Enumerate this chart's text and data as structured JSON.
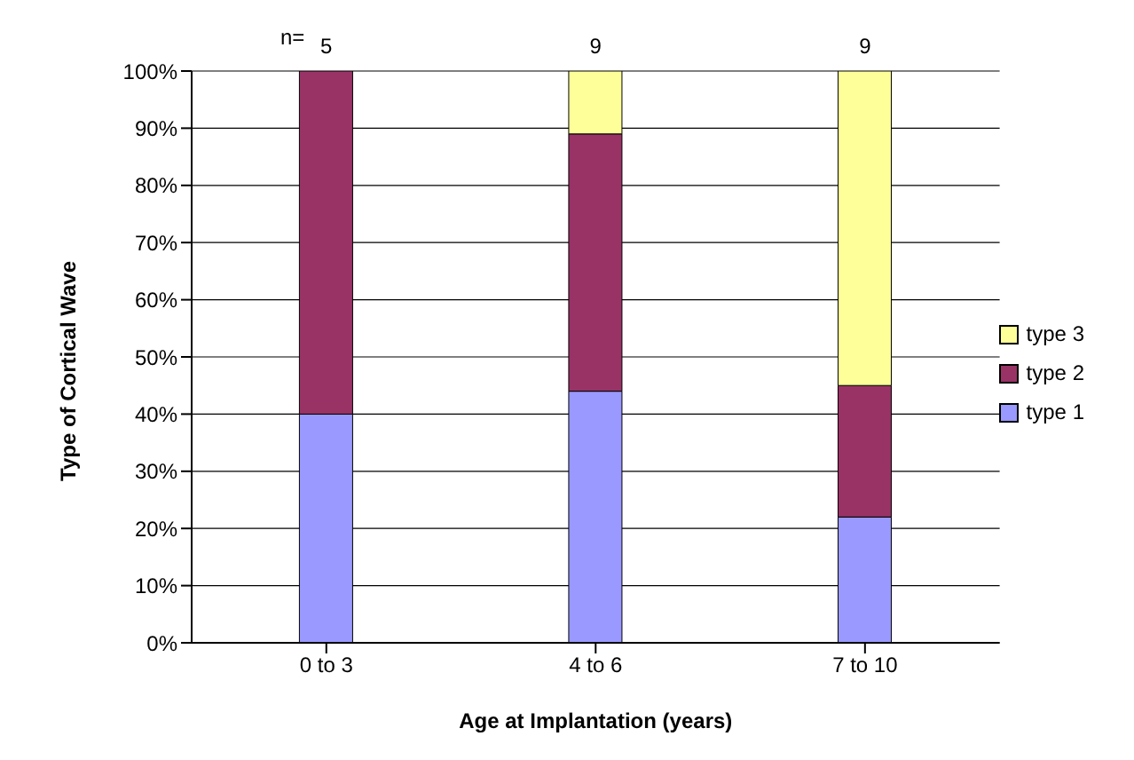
{
  "chart_data": {
    "type": "bar",
    "stacked": true,
    "xlabel": "Age at Implantation (years)",
    "ylabel": "Type of Cortical Wave",
    "categories": [
      "0 to 3",
      "4 to 6",
      "7 to 10"
    ],
    "series": [
      {
        "name": "type 1",
        "color": "#9999ff",
        "values": [
          40,
          44,
          22
        ]
      },
      {
        "name": "type 2",
        "color": "#993366",
        "values": [
          60,
          45,
          23
        ]
      },
      {
        "name": "type 3",
        "color": "#ffff99",
        "values": [
          0,
          11,
          55
        ]
      }
    ],
    "ylim": [
      0,
      100
    ],
    "yticks": [
      {
        "value": 0,
        "label": "0%"
      },
      {
        "value": 10,
        "label": "10%"
      },
      {
        "value": 20,
        "label": "20%"
      },
      {
        "value": 30,
        "label": "30%"
      },
      {
        "value": 40,
        "label": "40%"
      },
      {
        "value": 50,
        "label": "50%"
      },
      {
        "value": 60,
        "label": "60%"
      },
      {
        "value": 70,
        "label": "70%"
      },
      {
        "value": 80,
        "label": "80%"
      },
      {
        "value": 90,
        "label": "90%"
      },
      {
        "value": 100,
        "label": "100%"
      }
    ],
    "grid": "y",
    "legend": "right",
    "annotations": [
      "n=",
      {
        "text": "5",
        "x": "0 to 3",
        "y": 100
      },
      {
        "text": "9",
        "x": "4 to 6",
        "y": 100
      },
      {
        "text": "9",
        "x": "7 to 10",
        "y": 100
      }
    ]
  }
}
